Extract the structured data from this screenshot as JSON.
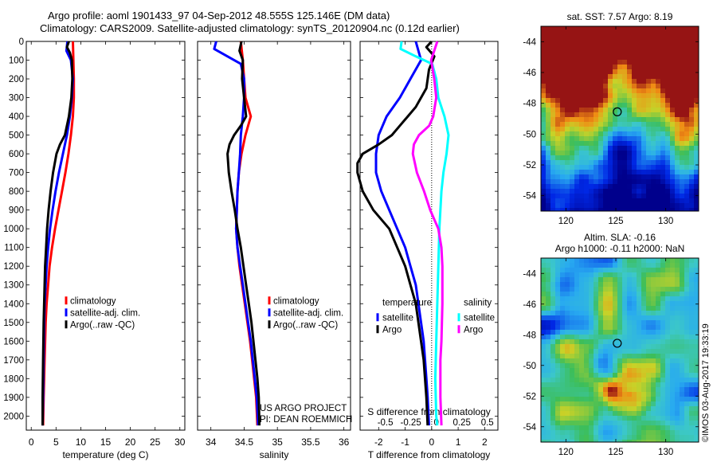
{
  "header": {
    "line1": "Argo profile: aoml 1901433_97 04-Sep-2012 48.555S 125.146E (DM data)",
    "line2": "Climatology: CARS2009. Satellite-adjusted climatology: synTS_20120904.nc (0.12d earlier)"
  },
  "colors": {
    "climatology": "#ff0000",
    "satellite": "#0000ff",
    "argo": "#000000",
    "satellite_s": "#00ffff",
    "argo_s": "#ff00ff"
  },
  "chart_data": [
    {
      "id": "temperature",
      "type": "line",
      "xlabel": "temperature (deg C)",
      "ylabel": "",
      "xlim": [
        -1,
        31
      ],
      "ylim": [
        2075,
        0
      ],
      "xticks": [
        0,
        5,
        10,
        15,
        20,
        25,
        30
      ],
      "yticks": [
        0,
        100,
        200,
        300,
        400,
        500,
        600,
        700,
        800,
        900,
        1000,
        1100,
        1200,
        1300,
        1400,
        1500,
        1600,
        1700,
        1800,
        1900,
        2000
      ],
      "legend": [
        "climatology",
        "satellite-adj. clim.",
        "Argo(..raw -QC)"
      ],
      "series": [
        {
          "name": "climatology",
          "color": "#ff0000",
          "depth": [
            0,
            100,
            200,
            300,
            400,
            500,
            600,
            700,
            800,
            900,
            1000,
            1100,
            1200,
            1300,
            1400,
            1500,
            1700,
            1900,
            2050
          ],
          "values": [
            8.4,
            8.5,
            8.6,
            8.6,
            8.4,
            8.0,
            7.5,
            6.9,
            6.2,
            5.5,
            4.8,
            4.2,
            3.7,
            3.4,
            3.1,
            2.9,
            2.7,
            2.5,
            2.4
          ]
        },
        {
          "name": "satellite-adj. clim.",
          "color": "#0000ff",
          "depth": [
            0,
            50,
            100,
            200,
            300,
            400,
            500,
            600,
            700,
            800,
            900,
            1000,
            1100,
            1200,
            1300,
            1400,
            1500,
            1700,
            1900,
            2050
          ],
          "values": [
            7.3,
            7.1,
            8.0,
            8.4,
            8.2,
            7.8,
            7.2,
            6.4,
            5.6,
            4.9,
            4.3,
            3.8,
            3.4,
            3.1,
            2.9,
            2.7,
            2.6,
            2.5,
            2.4,
            2.3
          ]
        },
        {
          "name": "Argo(..raw -QC)",
          "color": "#000000",
          "depth": [
            0,
            30,
            60,
            100,
            200,
            300,
            400,
            500,
            550,
            600,
            700,
            800,
            900,
            1000,
            1100,
            1200,
            1300,
            1400,
            1500,
            1700,
            1900,
            2050
          ],
          "values": [
            7.6,
            7.2,
            7.8,
            8.2,
            8.3,
            8.1,
            7.6,
            6.8,
            5.8,
            5.1,
            4.4,
            3.9,
            3.5,
            3.2,
            3.0,
            2.8,
            2.7,
            2.6,
            2.5,
            2.4,
            2.3,
            2.3
          ]
        }
      ]
    },
    {
      "id": "salinity",
      "type": "line",
      "xlabel": "salinity",
      "ylabel": "",
      "xlim": [
        33.8,
        36.1
      ],
      "ylim": [
        2075,
        0
      ],
      "xticks": [
        34,
        34.5,
        35,
        35.5,
        36
      ],
      "xticklabels": [
        "34",
        "34.5",
        "35",
        "35.5",
        "36"
      ],
      "legend": [
        "climatology",
        "satellite-adj. clim.",
        "Argo(..raw -QC)"
      ],
      "annotation": [
        "US ARGO PROJECT",
        "PI: DEAN ROEMMICH"
      ],
      "series": [
        {
          "name": "climatology",
          "color": "#ff0000",
          "depth": [
            0,
            100,
            200,
            300,
            400,
            500,
            600,
            700,
            800,
            900,
            1000,
            1100,
            1200,
            1300,
            1400,
            1500,
            1600,
            1700,
            1800,
            1900,
            2050
          ],
          "values": [
            34.45,
            34.48,
            34.5,
            34.52,
            34.6,
            34.52,
            34.46,
            34.42,
            34.4,
            34.39,
            34.38,
            34.4,
            34.43,
            34.47,
            34.51,
            34.55,
            34.59,
            34.62,
            34.65,
            34.68,
            34.7
          ]
        },
        {
          "name": "satellite-adj. clim.",
          "color": "#0000ff",
          "depth": [
            0,
            40,
            80,
            120,
            200,
            300,
            400,
            500,
            600,
            700,
            800,
            900,
            1000,
            1100,
            1200,
            1300,
            1400,
            1500,
            1600,
            1700,
            1800,
            1900,
            2050
          ],
          "values": [
            34.08,
            34.05,
            34.25,
            34.45,
            34.5,
            34.5,
            34.48,
            34.45,
            34.44,
            34.42,
            34.4,
            34.39,
            34.38,
            34.4,
            34.44,
            34.48,
            34.52,
            34.56,
            34.6,
            34.63,
            34.66,
            34.69,
            34.71
          ]
        },
        {
          "name": "Argo(..raw -QC)",
          "color": "#000000",
          "depth": [
            0,
            50,
            100,
            200,
            300,
            400,
            450,
            500,
            550,
            600,
            700,
            800,
            900,
            1000,
            1100,
            1200,
            1300,
            1400,
            1500,
            1600,
            1700,
            1800,
            1900,
            2050
          ],
          "values": [
            34.46,
            34.43,
            34.48,
            34.47,
            34.5,
            34.53,
            34.45,
            34.35,
            34.28,
            34.25,
            34.27,
            34.31,
            34.36,
            34.4,
            34.45,
            34.49,
            34.53,
            34.57,
            34.61,
            34.64,
            34.67,
            34.7,
            34.72,
            34.73
          ]
        }
      ]
    },
    {
      "id": "differences",
      "type": "line",
      "xlabel": "T difference from climatology",
      "top_xlabel": "S difference from climatology",
      "xlim": [
        -2.7,
        2.5
      ],
      "ylim": [
        2075,
        0
      ],
      "xticks": [
        -2,
        -1,
        0,
        1,
        2
      ],
      "xticklabels": [
        "-2",
        "-1",
        "0",
        "1",
        "2"
      ],
      "top_xticks": [
        -0.5,
        -0.25,
        0,
        0.25,
        0.5
      ],
      "top_xticklabels": [
        "-0.5",
        "-0.25",
        "0",
        "0.25",
        "0.5"
      ],
      "legend_titles": [
        "temperature",
        "salinity"
      ],
      "legend": [
        "satellite",
        "Argo",
        "satellite",
        "Argo"
      ],
      "series": [
        {
          "name": "temperature satellite",
          "color": "#0000ff",
          "depth": [
            0,
            100,
            200,
            300,
            400,
            500,
            600,
            700,
            800,
            900,
            1000,
            1100,
            1200,
            1300,
            1400,
            1500,
            1600,
            1700,
            1800,
            1900,
            2050
          ],
          "values": [
            -0.6,
            -0.4,
            -0.8,
            -1.2,
            -1.7,
            -2.0,
            -2.1,
            -2.1,
            -1.9,
            -1.6,
            -1.3,
            -1.0,
            -0.8,
            -0.6,
            -0.5,
            -0.4,
            -0.3,
            -0.25,
            -0.2,
            -0.15,
            -0.1
          ]
        },
        {
          "name": "temperature Argo",
          "color": "#000000",
          "depth": [
            0,
            30,
            80,
            150,
            250,
            300,
            350,
            400,
            450,
            500,
            550,
            600,
            650,
            700,
            800,
            900,
            1000,
            1100,
            1200,
            1300,
            1400,
            1500,
            1600,
            1700,
            1800,
            1900,
            2050
          ],
          "values": [
            0,
            -0.2,
            0.1,
            -0.1,
            -0.2,
            -0.4,
            -0.6,
            -0.9,
            -1.2,
            -1.5,
            -2.0,
            -2.6,
            -2.8,
            -2.8,
            -2.6,
            -2.2,
            -1.6,
            -1.3,
            -1.0,
            -0.8,
            -0.6,
            -0.5,
            -0.4,
            -0.3,
            -0.25,
            -0.2,
            -0.15
          ]
        },
        {
          "name": "salinity satellite",
          "color": "#00ffff",
          "depth": [
            0,
            40,
            80,
            120,
            200,
            300,
            400,
            500,
            600,
            700,
            800,
            900,
            1000,
            1200,
            1400,
            1600,
            1800,
            2000,
            2050
          ],
          "values": [
            -0.34,
            -0.35,
            -0.2,
            -0.04,
            0,
            0.02,
            0.08,
            0.12,
            0.1,
            0.07,
            0.05,
            0.04,
            0.03,
            0.02,
            0.01,
            0,
            -0.01,
            0,
            0.01
          ]
        },
        {
          "name": "salinity Argo",
          "color": "#ff00ff",
          "depth": [
            0,
            100,
            200,
            300,
            400,
            450,
            500,
            550,
            600,
            700,
            800,
            900,
            1000,
            1100,
            1200,
            1400,
            1600,
            1700,
            1800,
            1900,
            2050
          ],
          "values": [
            0.01,
            -0.05,
            -0.02,
            0,
            -0.03,
            -0.07,
            -0.17,
            -0.22,
            -0.23,
            -0.19,
            -0.12,
            -0.06,
            0.02,
            0.05,
            0.06,
            0.06,
            0.05,
            0.04,
            0.04,
            0.04,
            0.05
          ]
        }
      ]
    },
    {
      "id": "sst_map",
      "type": "heatmap",
      "title": "sat. SST: 7.57  Argo: 8.19",
      "xticks": [
        120,
        125,
        130
      ],
      "yticks": [
        -44,
        -46,
        -48,
        -50,
        -52,
        -54
      ],
      "xlim": [
        117.5,
        133.3
      ],
      "ylim": [
        -55,
        -43
      ],
      "marker": {
        "lon": 125.146,
        "lat": -48.555
      }
    },
    {
      "id": "sla_map",
      "type": "heatmap",
      "title_lines": [
        "Altim. SLA: -0.16",
        "Argo h1000: -0.11 h2000: NaN"
      ],
      "xticks": [
        120,
        125,
        130
      ],
      "yticks": [
        -44,
        -46,
        -48,
        -50,
        -52,
        -54
      ],
      "xlim": [
        117.5,
        133.3
      ],
      "ylim": [
        -55,
        -43
      ],
      "marker": {
        "lon": 125.146,
        "lat": -48.555
      },
      "credit": "©IMOS 03-Aug-2017 19:33:19"
    }
  ]
}
